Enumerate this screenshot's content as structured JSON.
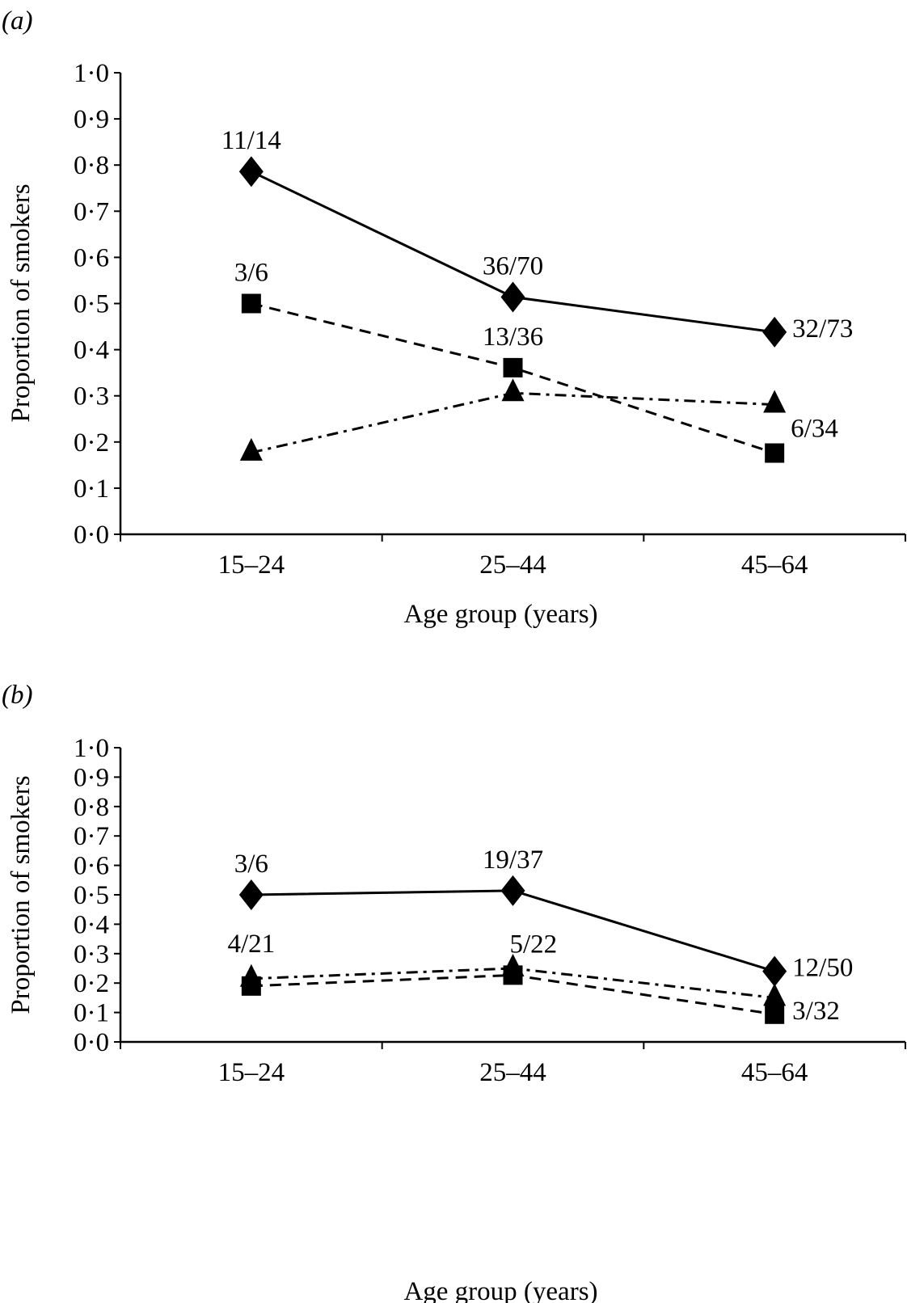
{
  "chart_data": [
    {
      "type": "line",
      "panel_label": "(a)",
      "xlabel": "Age group (years)",
      "ylabel": "Proportion of smokers",
      "categories": [
        "15–24",
        "25–44",
        "45–64"
      ],
      "ylim": [
        0,
        1
      ],
      "yticks": [
        "0·0",
        "0·1",
        "0·2",
        "0·3",
        "0·4",
        "0·5",
        "0·6",
        "0·7",
        "0·8",
        "0·9",
        "1·0"
      ],
      "grid": false,
      "series": [
        {
          "marker": "diamond",
          "line": "solid",
          "values": [
            0.786,
            0.514,
            0.438
          ],
          "labels": [
            "11/14",
            "36/70",
            "32/73"
          ],
          "label_position": [
            "above",
            "above",
            "right"
          ]
        },
        {
          "marker": "square",
          "line": "dashed",
          "values": [
            0.5,
            0.361,
            0.176
          ],
          "labels": [
            "3/6",
            "13/36",
            "6/34"
          ],
          "label_position": [
            "above",
            "above",
            "above-right"
          ]
        },
        {
          "marker": "triangle",
          "line": "dash-dot",
          "values": [
            0.177,
            0.306,
            0.281
          ],
          "labels": [
            "",
            "",
            ""
          ],
          "label_position": [
            "above",
            "above",
            "above"
          ]
        }
      ]
    },
    {
      "type": "line",
      "panel_label": "(b)",
      "xlabel": "Age group (years)",
      "ylabel": "Proportion of smokers",
      "categories": [
        "15–24",
        "25–44",
        "45–64"
      ],
      "ylim": [
        0,
        1
      ],
      "yticks": [
        "0·0",
        "0·1",
        "0·2",
        "0·3",
        "0·4",
        "0·5",
        "0·6",
        "0·7",
        "0·8",
        "0·9",
        "1·0"
      ],
      "grid": false,
      "series": [
        {
          "marker": "diamond",
          "line": "solid",
          "values": [
            0.5,
            0.514,
            0.24
          ],
          "labels": [
            "3/6",
            "19/37",
            "12/50"
          ],
          "label_position": [
            "above",
            "above",
            "right"
          ]
        },
        {
          "marker": "square",
          "line": "dashed",
          "values": [
            0.19,
            0.227,
            0.094
          ],
          "labels": [
            "4/21",
            "5/22",
            "3/32"
          ],
          "label_position": [
            "above-high",
            "above-right",
            "right"
          ]
        },
        {
          "marker": "triangle",
          "line": "dash-dot",
          "values": [
            0.215,
            0.25,
            0.15
          ],
          "labels": [
            "",
            "",
            ""
          ],
          "label_position": [
            "above",
            "above",
            "above"
          ]
        }
      ]
    }
  ]
}
